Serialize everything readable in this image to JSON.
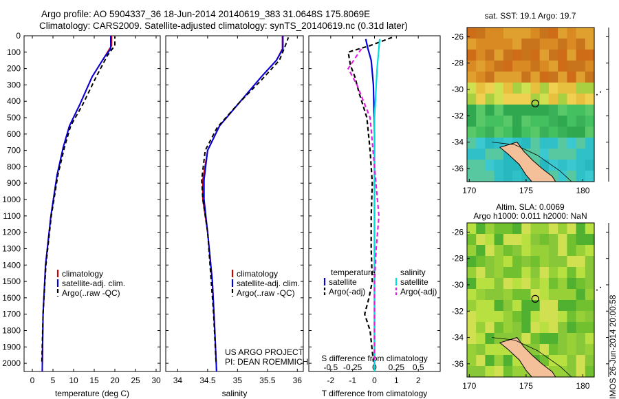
{
  "header": {
    "line1": "Argo profile: AO 5904337_36 18-Jun-2014 20140619_383 31.0648S 175.8069E",
    "line2": "Climatology: CARS2009. Satellite-adjusted climatology: synTS_20140619.nc (0.31d later)"
  },
  "credits": {
    "project": "US ARGO PROJECT",
    "pi": "PI: DEAN ROEMMICH"
  },
  "footer_stamp": "IMOS 26-Jun-2014 20:00:58",
  "depth_ticks": [
    0,
    100,
    200,
    300,
    400,
    500,
    600,
    700,
    800,
    900,
    1000,
    1100,
    1200,
    1300,
    1400,
    1500,
    1600,
    1700,
    1800,
    1900,
    2000
  ],
  "colors": {
    "climatology": "#d00000",
    "satellite": "#0000e0",
    "argo": "#000000",
    "sal_satellite": "#00dddd",
    "sal_argo": "#e020e0"
  },
  "chart_data": [
    {
      "type": "line",
      "xlabel": "temperature (deg C)",
      "xticks": [
        0,
        5,
        10,
        15,
        20,
        25,
        30
      ],
      "xlim": [
        -2,
        31
      ],
      "ylim": [
        2050,
        0
      ],
      "legend": [
        "climatology",
        "satellite-adj. clim.",
        "Argo(..raw -QC)"
      ],
      "series": [
        {
          "name": "climatology",
          "points": [
            [
              2.4,
              2050
            ],
            [
              2.6,
              1700
            ],
            [
              3.2,
              1400
            ],
            [
              4.5,
              1100
            ],
            [
              6.0,
              850
            ],
            [
              7.5,
              680
            ],
            [
              9.0,
              550
            ],
            [
              11.5,
              420
            ],
            [
              14.5,
              250
            ],
            [
              17.5,
              130
            ],
            [
              19.2,
              60
            ],
            [
              19.2,
              0
            ]
          ]
        },
        {
          "name": "satellite-adj. clim.",
          "points": [
            [
              2.4,
              2050
            ],
            [
              2.6,
              1700
            ],
            [
              3.2,
              1400
            ],
            [
              4.5,
              1100
            ],
            [
              6.0,
              850
            ],
            [
              7.5,
              680
            ],
            [
              9.0,
              550
            ],
            [
              11.5,
              420
            ],
            [
              14.5,
              250
            ],
            [
              17.5,
              130
            ],
            [
              19.0,
              80
            ],
            [
              19.0,
              0
            ]
          ]
        },
        {
          "name": "Argo(..raw -QC)",
          "points": [
            [
              2.3,
              1990
            ],
            [
              2.6,
              1700
            ],
            [
              3.3,
              1400
            ],
            [
              4.6,
              1100
            ],
            [
              6.2,
              850
            ],
            [
              7.8,
              680
            ],
            [
              9.3,
              550
            ],
            [
              12.2,
              420
            ],
            [
              15.5,
              250
            ],
            [
              18.2,
              120
            ],
            [
              20.0,
              60
            ],
            [
              20.0,
              5
            ]
          ]
        }
      ]
    },
    {
      "type": "line",
      "xlabel": "salinity",
      "xticks": [
        34,
        34.5,
        35,
        35.5,
        36
      ],
      "xlim": [
        33.8,
        36.1
      ],
      "ylim": [
        2050,
        0
      ],
      "legend": [
        "climatology",
        "satellite-adj. clim.",
        "Argo(..raw -QC)"
      ],
      "series": [
        {
          "name": "climatology",
          "points": [
            [
              34.65,
              2050
            ],
            [
              34.62,
              1800
            ],
            [
              34.58,
              1500
            ],
            [
              34.5,
              1200
            ],
            [
              34.42,
              1000
            ],
            [
              34.42,
              880
            ],
            [
              34.5,
              700
            ],
            [
              34.7,
              550
            ],
            [
              35.05,
              400
            ],
            [
              35.4,
              250
            ],
            [
              35.65,
              150
            ],
            [
              35.75,
              80
            ],
            [
              35.75,
              0
            ]
          ]
        },
        {
          "name": "satellite-adj. clim.",
          "points": [
            [
              34.65,
              2050
            ],
            [
              34.62,
              1800
            ],
            [
              34.58,
              1500
            ],
            [
              34.5,
              1200
            ],
            [
              34.44,
              1000
            ],
            [
              34.44,
              880
            ],
            [
              34.5,
              700
            ],
            [
              34.7,
              550
            ],
            [
              35.05,
              400
            ],
            [
              35.4,
              250
            ],
            [
              35.65,
              150
            ],
            [
              35.76,
              80
            ],
            [
              35.76,
              0
            ]
          ]
        },
        {
          "name": "Argo(..raw -QC)",
          "points": [
            [
              34.64,
              1990
            ],
            [
              34.6,
              1700
            ],
            [
              34.56,
              1500
            ],
            [
              34.5,
              1200
            ],
            [
              34.42,
              1000
            ],
            [
              34.4,
              880
            ],
            [
              34.46,
              700
            ],
            [
              34.66,
              560
            ],
            [
              35.0,
              420
            ],
            [
              35.4,
              270
            ],
            [
              35.7,
              150
            ],
            [
              35.8,
              60
            ],
            [
              35.85,
              10
            ]
          ]
        }
      ]
    },
    {
      "type": "line",
      "xlabel_bottom": "T difference from climatology",
      "xlabel_top": "S difference from climatology",
      "xticks_T": [
        -2,
        -1,
        0,
        1,
        2
      ],
      "xticks_S": [
        -0.5,
        -0.25,
        0,
        0.25,
        0.5
      ],
      "xlim": [
        -3,
        3
      ],
      "ylim": [
        2050,
        0
      ],
      "legend_temperature": {
        "title": "temperature",
        "items": [
          "satellite",
          "Argo(-adj)"
        ]
      },
      "legend_salinity": {
        "title": "salinity",
        "items": [
          "satellite",
          "Argo(-adj)"
        ]
      },
      "series": [
        {
          "name": "temperature satellite",
          "points": [
            [
              -0.4,
              20
            ],
            [
              -0.3,
              80
            ],
            [
              -0.15,
              150
            ],
            [
              -0.05,
              300
            ],
            [
              0.0,
              600
            ],
            [
              0.0,
              2050
            ]
          ]
        },
        {
          "name": "temperature Argo(-adj)",
          "points": [
            [
              0.8,
              10
            ],
            [
              -0.2,
              60
            ],
            [
              -1.2,
              100
            ],
            [
              -1.1,
              180
            ],
            [
              -0.9,
              250
            ],
            [
              -0.7,
              350
            ],
            [
              -0.35,
              500
            ],
            [
              -0.2,
              700
            ],
            [
              -0.1,
              900
            ],
            [
              -0.15,
              1100
            ],
            [
              -0.15,
              1300
            ],
            [
              -0.1,
              1500
            ],
            [
              -0.25,
              1600
            ],
            [
              -0.45,
              1700
            ],
            [
              -0.2,
              1800
            ],
            [
              -0.05,
              1990
            ]
          ]
        },
        {
          "name": "salinity satellite",
          "points": [
            [
              0.06,
              20
            ],
            [
              0.03,
              200
            ],
            [
              0.0,
              500
            ],
            [
              0.0,
              2050
            ]
          ]
        },
        {
          "name": "salinity Argo(-adj)",
          "points": [
            [
              -0.15,
              80
            ],
            [
              -0.3,
              200
            ],
            [
              -0.2,
              300
            ],
            [
              -0.05,
              500
            ],
            [
              0.0,
              800
            ],
            [
              0.05,
              1100
            ],
            [
              0.02,
              1300
            ],
            [
              0.0,
              1500
            ],
            [
              0.0,
              2000
            ]
          ]
        }
      ]
    }
  ],
  "maps": [
    {
      "title": "sat. SST: 19.1 Argo: 19.7",
      "yticks": [
        -26,
        -28,
        -30,
        -32,
        -34,
        -36
      ],
      "xticks": [
        170,
        175,
        180
      ]
    },
    {
      "title_line1": "Altim. SLA: 0.0069",
      "title_line2": "Argo h1000: 0.011 h2000: NaN",
      "yticks": [
        -26,
        -28,
        -30,
        -32,
        -34,
        -36
      ],
      "xticks": [
        170,
        175,
        180
      ]
    }
  ]
}
